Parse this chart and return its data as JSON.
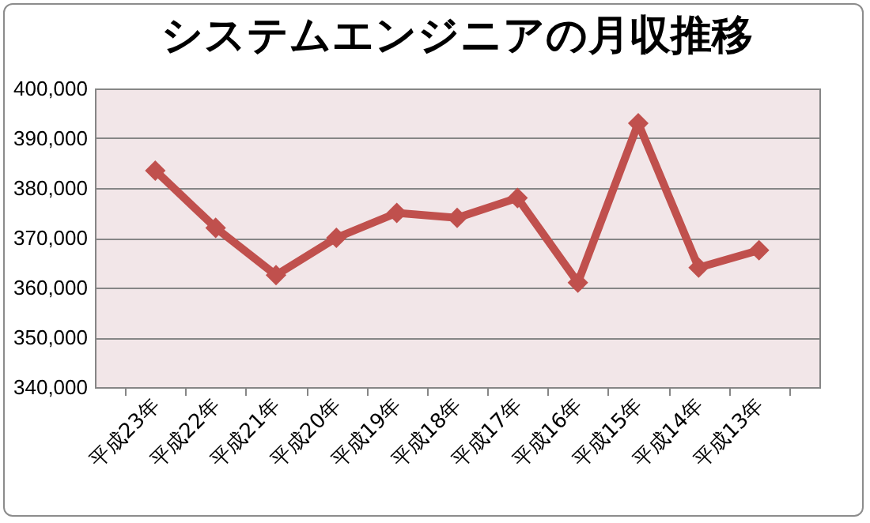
{
  "chart_data": {
    "type": "line",
    "title": "システムエンジニアの月収推移",
    "categories": [
      "平成23年",
      "平成22年",
      "平成21年",
      "平成20年",
      "平成19年",
      "平成18年",
      "平成17年",
      "平成16年",
      "平成15年",
      "平成14年",
      "平成13年"
    ],
    "series": [
      {
        "color": "#c0504d",
        "values": [
          383500,
          372000,
          362500,
          370000,
          375000,
          374000,
          378000,
          361000,
          393000,
          364000,
          367500
        ]
      }
    ],
    "ylim": [
      340000,
      400000
    ],
    "yticks": [
      {
        "value": 340000,
        "label": "340,000"
      },
      {
        "value": 350000,
        "label": "350,000"
      },
      {
        "value": 360000,
        "label": "360,000"
      },
      {
        "value": 370000,
        "label": "370,000"
      },
      {
        "value": 380000,
        "label": "380,000"
      },
      {
        "value": 390000,
        "label": "390,000"
      },
      {
        "value": 400000,
        "label": "400,000"
      }
    ],
    "grid": "y",
    "marker": "diamond",
    "legend": false
  }
}
